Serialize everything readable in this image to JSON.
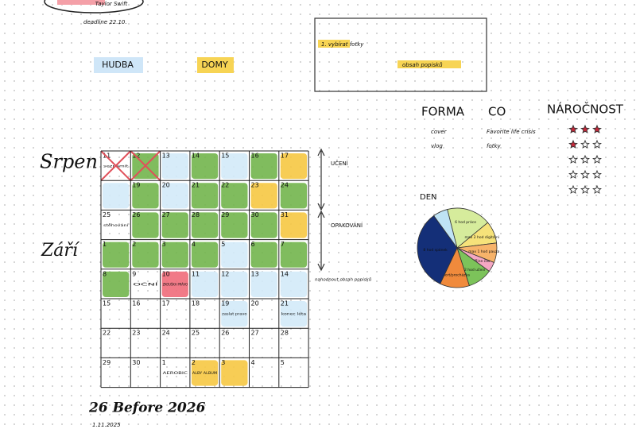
{
  "header": {
    "title": "Taylor Swift",
    "deadline": "deadline 22.10."
  },
  "labels": [
    "HUDBA",
    "DOMY"
  ],
  "note_box": {
    "items": [
      "1. vybírat fotky",
      "obsah popisků"
    ]
  },
  "table": {
    "headers": [
      "FORMA",
      "CO",
      "NÁROČNOST"
    ],
    "rows": [
      [
        "cover",
        "Favorite life crisis"
      ],
      [
        "vlog",
        "fotky"
      ]
    ],
    "ratings": [
      3,
      1,
      0,
      0,
      0
    ],
    "max_rating": 3
  },
  "calendar": {
    "months": [
      "Srpen",
      "Září"
    ],
    "colors": {
      "g": "#72b54c",
      "b": "#d3eaf8",
      "y": "#f6c843",
      "r": "#f06b7a"
    },
    "weeks": [
      [
        {
          "day": "11",
          "note": "seznámit",
          "crossed": true
        },
        {
          "day": "12",
          "color": "g",
          "crossed": true
        },
        {
          "day": "13",
          "color": "b"
        },
        {
          "day": "14",
          "color": "g"
        },
        {
          "day": "15",
          "color": "b"
        },
        {
          "day": "16",
          "color": "g"
        },
        {
          "day": "17",
          "color": "y"
        }
      ],
      [
        {
          "color": "b"
        },
        {
          "day": "19",
          "color": "g"
        },
        {
          "day": "20",
          "color": "b"
        },
        {
          "day": "21",
          "color": "g"
        },
        {
          "day": "22",
          "color": "g"
        },
        {
          "day": "23",
          "color": "y"
        },
        {
          "day": "24",
          "color": "g"
        }
      ],
      [
        {
          "day": "25",
          "note": "stěhování"
        },
        {
          "day": "26",
          "color": "g"
        },
        {
          "day": "27",
          "color": "g"
        },
        {
          "day": "28",
          "color": "g"
        },
        {
          "day": "29",
          "color": "g"
        },
        {
          "day": "30",
          "color": "g"
        },
        {
          "day": "31",
          "color": "y"
        }
      ],
      [
        {
          "day": "1",
          "color": "g"
        },
        {
          "day": "2",
          "color": "g"
        },
        {
          "day": "3",
          "color": "g"
        },
        {
          "day": "4",
          "color": "g"
        },
        {
          "day": "5",
          "color": "b"
        },
        {
          "day": "6",
          "color": "g"
        },
        {
          "day": "7",
          "color": "g"
        }
      ],
      [
        {
          "day": "8",
          "color": "g"
        },
        {
          "day": "9",
          "note": "OČNÍ"
        },
        {
          "day": "10",
          "color": "r",
          "note": "ZKOUŠKA PRÁVO"
        },
        {
          "day": "11",
          "color": "b"
        },
        {
          "day": "12",
          "color": "b"
        },
        {
          "day": "13",
          "color": "b"
        },
        {
          "day": "14",
          "color": "b"
        }
      ],
      [
        {
          "day": "15"
        },
        {
          "day": "16"
        },
        {
          "day": "17"
        },
        {
          "day": "18"
        },
        {
          "day": "19",
          "color": "b",
          "note": "zaslat pravo"
        },
        {
          "day": "20"
        },
        {
          "day": "21",
          "color": "b",
          "note": "konec léta"
        }
      ],
      [
        {
          "day": "22"
        },
        {
          "day": "23"
        },
        {
          "day": "24"
        },
        {
          "day": "25"
        },
        {
          "day": "26"
        },
        {
          "day": "27"
        },
        {
          "day": "28"
        }
      ],
      [
        {
          "day": "29"
        },
        {
          "day": "30"
        },
        {
          "day": "1",
          "note": "AEROBIC"
        },
        {
          "day": "2",
          "color": "y",
          "note": "ALBY ALBUM"
        },
        {
          "day": "3",
          "color": "y"
        },
        {
          "day": "4"
        },
        {
          "day": "5"
        }
      ]
    ],
    "side_labels": [
      "UČENÍ",
      "OPAKOVÁNÍ",
      "nahodnout obsah popisků"
    ]
  },
  "pie": {
    "title": "DEN",
    "slices": [
      {
        "label": "6 hod práce",
        "value": 18,
        "color": "#d6ec9c"
      },
      {
        "label": "max 2 hod digitální",
        "value": 9,
        "color": "#f6e27a"
      },
      {
        "label": "max 1 hod pauza",
        "value": 8,
        "color": "#f7b36a"
      },
      {
        "label": "offline čas",
        "value": 4,
        "color": "#f4a7c3"
      },
      {
        "label": "1-2 hod učení",
        "value": 10,
        "color": "#7cc35a"
      },
      {
        "label": "sport/procházka",
        "value": 12,
        "color": "#f08a3c"
      },
      {
        "label": "8 hod spánek",
        "value": 33,
        "color": "#142f78"
      },
      {
        "label": null,
        "value": 6,
        "color": "#bfe3f5"
      }
    ]
  },
  "footer": {
    "title": "26 Before 2026",
    "date": "1.11.2025"
  }
}
